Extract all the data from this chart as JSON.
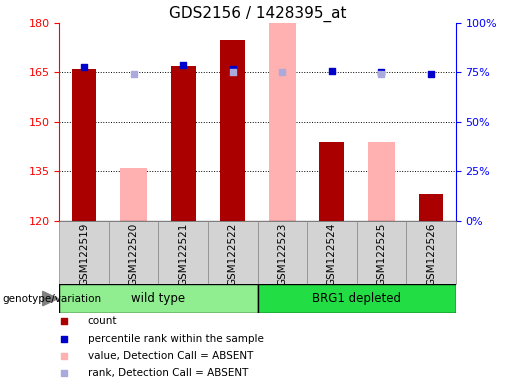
{
  "title": "GDS2156 / 1428395_at",
  "samples": [
    "GSM122519",
    "GSM122520",
    "GSM122521",
    "GSM122522",
    "GSM122523",
    "GSM122524",
    "GSM122525",
    "GSM122526"
  ],
  "count_values": [
    166,
    null,
    167,
    175,
    null,
    144,
    null,
    128
  ],
  "rank_pct_values": [
    78,
    null,
    79,
    77,
    null,
    76,
    75,
    74
  ],
  "absent_value_values": [
    null,
    136,
    null,
    null,
    183,
    null,
    144,
    null
  ],
  "absent_rank_pct_values": [
    null,
    74,
    null,
    75,
    75,
    null,
    74,
    null
  ],
  "ylim_left": [
    120,
    180
  ],
  "ylim_right": [
    0,
    100
  ],
  "yticks_left": [
    120,
    135,
    150,
    165,
    180
  ],
  "yticks_right": [
    0,
    25,
    50,
    75,
    100
  ],
  "bar_width": 0.5,
  "count_color": "#AA0000",
  "rank_color": "#0000CC",
  "absent_value_color": "#FFB0B0",
  "absent_rank_color": "#AAAADD",
  "wt_color": "#90EE90",
  "brg_color": "#22DD44",
  "title_fontsize": 11,
  "axis_fontsize": 8,
  "legend_items": [
    {
      "color": "#AA0000",
      "label": "count",
      "marker": "s"
    },
    {
      "color": "#0000CC",
      "label": "percentile rank within the sample",
      "marker": "s"
    },
    {
      "color": "#FFB0B0",
      "label": "value, Detection Call = ABSENT",
      "marker": "s"
    },
    {
      "color": "#AAAADD",
      "label": "rank, Detection Call = ABSENT",
      "marker": "s"
    }
  ]
}
